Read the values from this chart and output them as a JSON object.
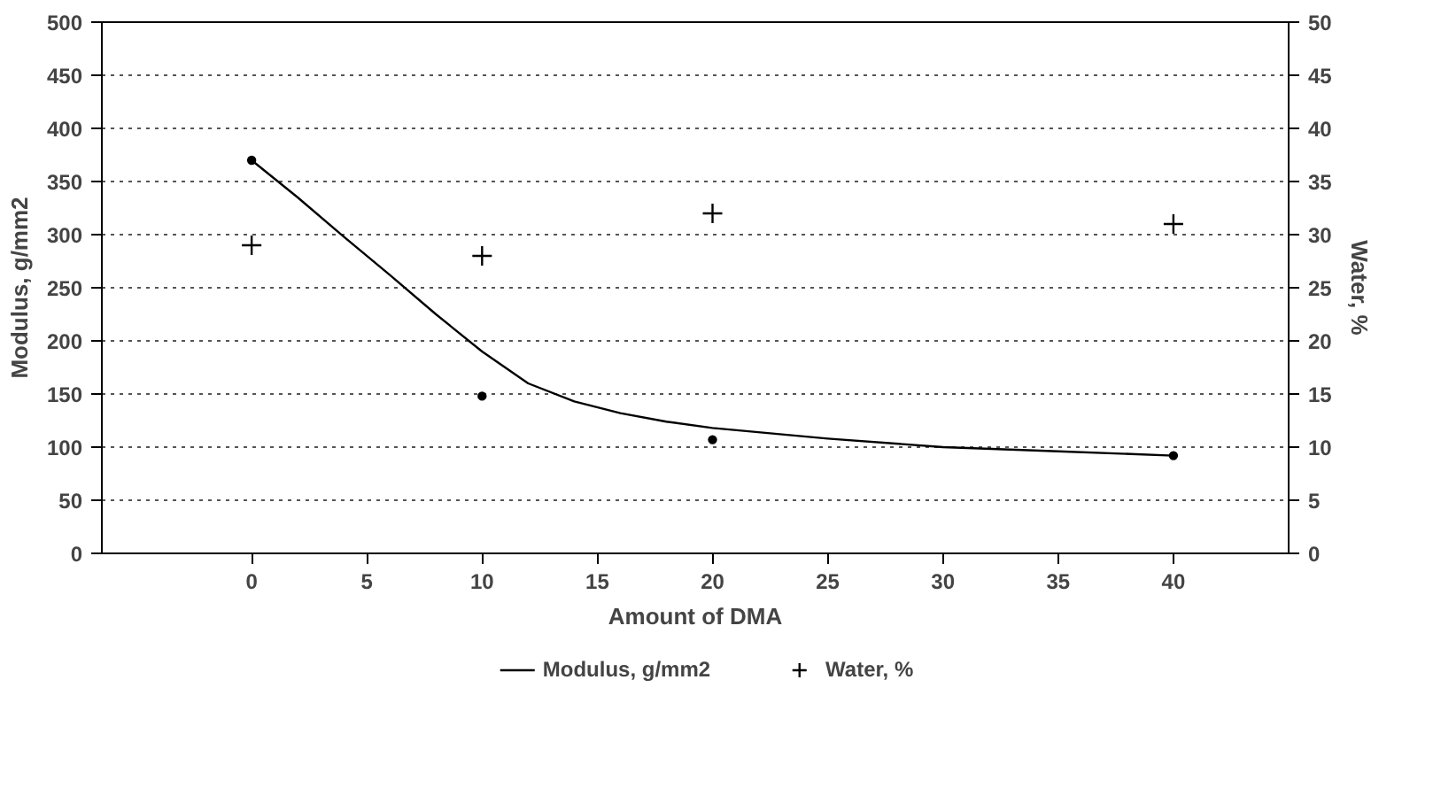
{
  "chart_data": {
    "type": "line",
    "xlabel": "Amount of DMA",
    "ylabel": "Modulus, g/mm2",
    "y2label": "Water, %",
    "xlim": [
      -6.5,
      45
    ],
    "xticks": [
      0,
      5,
      10,
      15,
      20,
      25,
      30,
      35,
      40
    ],
    "ylim": [
      0,
      500
    ],
    "yticks": [
      0,
      50,
      100,
      150,
      200,
      250,
      300,
      350,
      400,
      450,
      500
    ],
    "y2lim": [
      0,
      50
    ],
    "y2ticks": [
      0,
      5,
      10,
      15,
      20,
      25,
      30,
      35,
      40,
      45,
      50
    ],
    "grid": "y",
    "legend": "bottom",
    "series": [
      {
        "name": "Modulus, g/mm2",
        "color": "#000000",
        "x": [
          0,
          2,
          4,
          6,
          8,
          10,
          12,
          14,
          16,
          18,
          20,
          25,
          30,
          35,
          40
        ],
        "values": [
          370,
          335,
          298,
          262,
          225,
          190,
          160,
          143,
          132,
          124,
          118,
          108,
          100,
          96,
          92
        ]
      },
      {
        "type": "scatter",
        "marker": "circle",
        "color": "#000000",
        "x": [
          0,
          10,
          20,
          40
        ],
        "values": [
          370,
          148,
          107,
          92
        ]
      },
      {
        "name": "Water, %",
        "type": "scatter",
        "marker": "cross",
        "axis": "y2",
        "color": "#000000",
        "x": [
          0,
          10,
          20,
          40
        ],
        "values": [
          29,
          28,
          32,
          31
        ]
      }
    ]
  }
}
